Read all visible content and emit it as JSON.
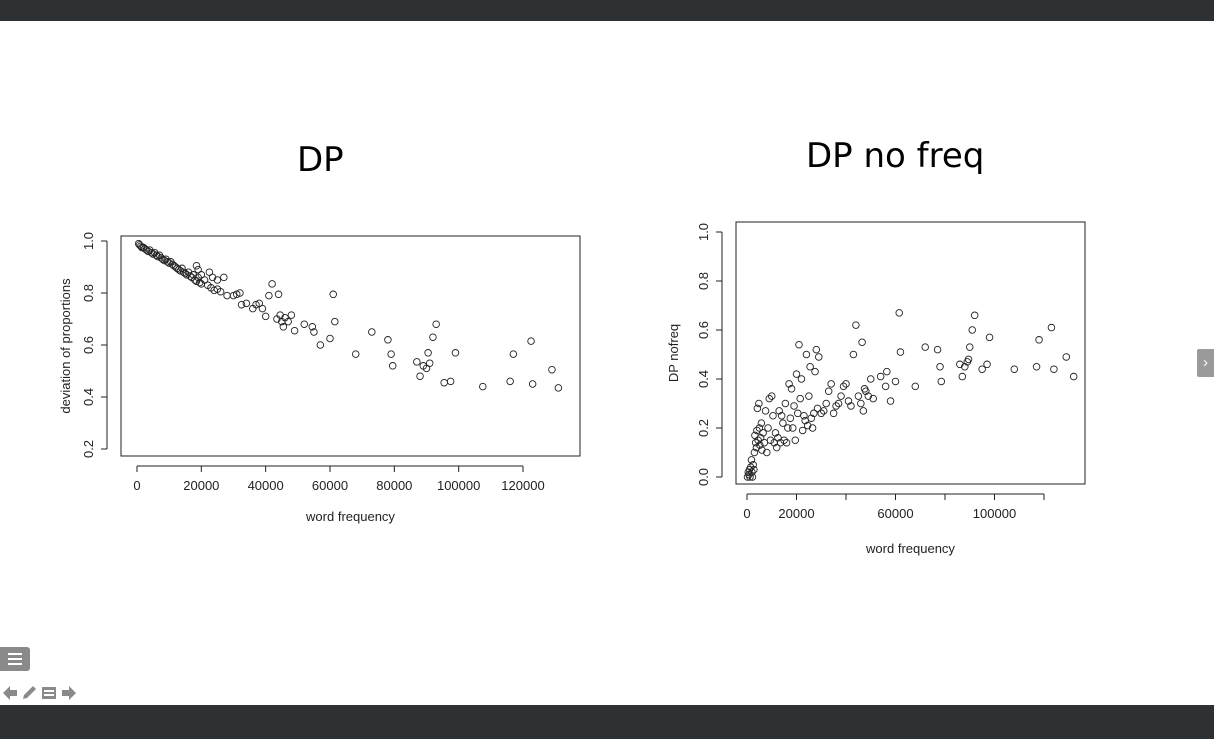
{
  "slide": {
    "title_left": "DP",
    "title_right": "DP no freq"
  },
  "icons": {
    "next": "chevron-right-icon",
    "menu": "list-icon",
    "toolbar": [
      "arrow-left-icon",
      "pencil-icon",
      "notes-icon",
      "arrow-right-icon"
    ]
  },
  "chart_data": [
    {
      "type": "scatter",
      "title": "",
      "xlabel": "word frequency",
      "ylabel": "deviation of proportions",
      "xlim": [
        0,
        135000
      ],
      "ylim": [
        0.2,
        1.0
      ],
      "x_ticks": [
        "0",
        "20000",
        "40000",
        "60000",
        "80000",
        "100000",
        "120000"
      ],
      "y_ticks": [
        "0.2",
        "0.4",
        "0.6",
        "0.8",
        "1.0"
      ],
      "grid": false,
      "points": [
        [
          500,
          0.99
        ],
        [
          800,
          0.985
        ],
        [
          1200,
          0.98
        ],
        [
          1500,
          0.975
        ],
        [
          2000,
          0.975
        ],
        [
          2500,
          0.97
        ],
        [
          3000,
          0.965
        ],
        [
          3500,
          0.96
        ],
        [
          4000,
          0.965
        ],
        [
          4500,
          0.955
        ],
        [
          5000,
          0.95
        ],
        [
          5500,
          0.955
        ],
        [
          6000,
          0.945
        ],
        [
          6500,
          0.94
        ],
        [
          7000,
          0.945
        ],
        [
          7500,
          0.935
        ],
        [
          8000,
          0.93
        ],
        [
          8500,
          0.925
        ],
        [
          9000,
          0.93
        ],
        [
          9500,
          0.92
        ],
        [
          10000,
          0.915
        ],
        [
          10500,
          0.92
        ],
        [
          11000,
          0.91
        ],
        [
          11500,
          0.905
        ],
        [
          12000,
          0.9
        ],
        [
          12500,
          0.895
        ],
        [
          13000,
          0.89
        ],
        [
          13500,
          0.885
        ],
        [
          14000,
          0.895
        ],
        [
          14500,
          0.88
        ],
        [
          15000,
          0.875
        ],
        [
          15500,
          0.87
        ],
        [
          16000,
          0.88
        ],
        [
          16500,
          0.865
        ],
        [
          17000,
          0.86
        ],
        [
          17500,
          0.87
        ],
        [
          18000,
          0.85
        ],
        [
          18500,
          0.845
        ],
        [
          19000,
          0.86
        ],
        [
          19500,
          0.84
        ],
        [
          20000,
          0.835
        ],
        [
          21000,
          0.85
        ],
        [
          22000,
          0.83
        ],
        [
          23000,
          0.82
        ],
        [
          24000,
          0.81
        ],
        [
          25000,
          0.815
        ],
        [
          26000,
          0.805
        ],
        [
          18500,
          0.905
        ],
        [
          19000,
          0.89
        ],
        [
          20000,
          0.87
        ],
        [
          22500,
          0.88
        ],
        [
          23500,
          0.86
        ],
        [
          25000,
          0.85
        ],
        [
          27000,
          0.86
        ],
        [
          28000,
          0.79
        ],
        [
          30000,
          0.79
        ],
        [
          31000,
          0.795
        ],
        [
          32000,
          0.8
        ],
        [
          32500,
          0.755
        ],
        [
          34000,
          0.76
        ],
        [
          36000,
          0.74
        ],
        [
          37000,
          0.755
        ],
        [
          38000,
          0.76
        ],
        [
          39000,
          0.74
        ],
        [
          40000,
          0.71
        ],
        [
          41000,
          0.79
        ],
        [
          42000,
          0.835
        ],
        [
          43500,
          0.7
        ],
        [
          44000,
          0.795
        ],
        [
          44500,
          0.715
        ],
        [
          45000,
          0.69
        ],
        [
          45500,
          0.67
        ],
        [
          46000,
          0.705
        ],
        [
          47000,
          0.69
        ],
        [
          48000,
          0.715
        ],
        [
          49000,
          0.655
        ],
        [
          52000,
          0.68
        ],
        [
          54500,
          0.67
        ],
        [
          55000,
          0.65
        ],
        [
          57000,
          0.6
        ],
        [
          60000,
          0.625
        ],
        [
          61000,
          0.795
        ],
        [
          61500,
          0.69
        ],
        [
          68000,
          0.565
        ],
        [
          73000,
          0.65
        ],
        [
          78000,
          0.62
        ],
        [
          79000,
          0.565
        ],
        [
          79500,
          0.52
        ],
        [
          87000,
          0.535
        ],
        [
          88000,
          0.48
        ],
        [
          89000,
          0.52
        ],
        [
          90000,
          0.51
        ],
        [
          90500,
          0.57
        ],
        [
          91000,
          0.53
        ],
        [
          92000,
          0.63
        ],
        [
          93000,
          0.68
        ],
        [
          95500,
          0.455
        ],
        [
          97500,
          0.46
        ],
        [
          99000,
          0.57
        ],
        [
          107500,
          0.44
        ],
        [
          116000,
          0.46
        ],
        [
          117000,
          0.565
        ],
        [
          122500,
          0.615
        ],
        [
          123000,
          0.45
        ],
        [
          129000,
          0.505
        ],
        [
          131000,
          0.435
        ]
      ]
    },
    {
      "type": "scatter",
      "title": "",
      "xlabel": "word frequency",
      "ylabel": "DP nofreq",
      "xlim": [
        0,
        138000
      ],
      "ylim": [
        0.0,
        1.0
      ],
      "x_ticks": [
        "0",
        "20000",
        "60000",
        "100000"
      ],
      "y_ticks": [
        "0.0",
        "0.2",
        "0.4",
        "0.6",
        "0.8",
        "1.0"
      ],
      "grid": false,
      "points": [
        [
          200,
          0.0
        ],
        [
          500,
          0.02
        ],
        [
          800,
          0.01
        ],
        [
          1000,
          0.03
        ],
        [
          1200,
          0.0
        ],
        [
          1500,
          0.04
        ],
        [
          1800,
          0.07
        ],
        [
          2000,
          0.02
        ],
        [
          2200,
          0.0
        ],
        [
          2500,
          0.05
        ],
        [
          2800,
          0.03
        ],
        [
          3000,
          0.1
        ],
        [
          3200,
          0.17
        ],
        [
          3500,
          0.14
        ],
        [
          3800,
          0.12
        ],
        [
          4000,
          0.19
        ],
        [
          4200,
          0.28
        ],
        [
          4500,
          0.15
        ],
        [
          4800,
          0.3
        ],
        [
          5000,
          0.2
        ],
        [
          5200,
          0.13
        ],
        [
          5500,
          0.16
        ],
        [
          5800,
          0.22
        ],
        [
          6000,
          0.11
        ],
        [
          6500,
          0.18
        ],
        [
          7000,
          0.14
        ],
        [
          7500,
          0.27
        ],
        [
          8000,
          0.1
        ],
        [
          8500,
          0.2
        ],
        [
          9000,
          0.32
        ],
        [
          9500,
          0.15
        ],
        [
          10000,
          0.33
        ],
        [
          10500,
          0.25
        ],
        [
          11000,
          0.14
        ],
        [
          11500,
          0.18
        ],
        [
          12000,
          0.12
        ],
        [
          12500,
          0.16
        ],
        [
          13000,
          0.27
        ],
        [
          13500,
          0.14
        ],
        [
          14000,
          0.25
        ],
        [
          14500,
          0.22
        ],
        [
          15000,
          0.15
        ],
        [
          15500,
          0.3
        ],
        [
          16000,
          0.14
        ],
        [
          16500,
          0.2
        ],
        [
          17000,
          0.38
        ],
        [
          17500,
          0.24
        ],
        [
          18000,
          0.36
        ],
        [
          18500,
          0.2
        ],
        [
          19000,
          0.29
        ],
        [
          19500,
          0.15
        ],
        [
          20000,
          0.42
        ],
        [
          20500,
          0.26
        ],
        [
          21000,
          0.54
        ],
        [
          21500,
          0.32
        ],
        [
          22000,
          0.4
        ],
        [
          22500,
          0.19
        ],
        [
          23000,
          0.25
        ],
        [
          23500,
          0.23
        ],
        [
          24000,
          0.5
        ],
        [
          24500,
          0.21
        ],
        [
          25000,
          0.33
        ],
        [
          25500,
          0.45
        ],
        [
          26000,
          0.24
        ],
        [
          26500,
          0.2
        ],
        [
          27000,
          0.26
        ],
        [
          27500,
          0.43
        ],
        [
          28000,
          0.52
        ],
        [
          28500,
          0.28
        ],
        [
          29000,
          0.49
        ],
        [
          30000,
          0.26
        ],
        [
          31000,
          0.27
        ],
        [
          32000,
          0.3
        ],
        [
          33000,
          0.35
        ],
        [
          34000,
          0.38
        ],
        [
          35000,
          0.26
        ],
        [
          36000,
          0.29
        ],
        [
          37000,
          0.3
        ],
        [
          38000,
          0.33
        ],
        [
          39000,
          0.37
        ],
        [
          40000,
          0.38
        ],
        [
          41000,
          0.31
        ],
        [
          42000,
          0.29
        ],
        [
          43000,
          0.5
        ],
        [
          44000,
          0.62
        ],
        [
          45000,
          0.33
        ],
        [
          46000,
          0.3
        ],
        [
          46500,
          0.55
        ],
        [
          47000,
          0.27
        ],
        [
          47500,
          0.36
        ],
        [
          48000,
          0.35
        ],
        [
          49000,
          0.33
        ],
        [
          50000,
          0.4
        ],
        [
          51000,
          0.32
        ],
        [
          54000,
          0.41
        ],
        [
          56000,
          0.37
        ],
        [
          56500,
          0.43
        ],
        [
          58000,
          0.31
        ],
        [
          60000,
          0.39
        ],
        [
          61500,
          0.67
        ],
        [
          62000,
          0.51
        ],
        [
          68000,
          0.37
        ],
        [
          72000,
          0.53
        ],
        [
          77000,
          0.52
        ],
        [
          78000,
          0.45
        ],
        [
          78500,
          0.39
        ],
        [
          86000,
          0.46
        ],
        [
          87000,
          0.41
        ],
        [
          88000,
          0.45
        ],
        [
          89000,
          0.47
        ],
        [
          89500,
          0.48
        ],
        [
          90000,
          0.53
        ],
        [
          91000,
          0.6
        ],
        [
          92000,
          0.66
        ],
        [
          95000,
          0.44
        ],
        [
          97000,
          0.46
        ],
        [
          98000,
          0.57
        ],
        [
          108000,
          0.44
        ],
        [
          117000,
          0.45
        ],
        [
          118000,
          0.56
        ],
        [
          123000,
          0.61
        ],
        [
          124000,
          0.44
        ],
        [
          129000,
          0.49
        ],
        [
          132000,
          0.41
        ]
      ]
    }
  ]
}
